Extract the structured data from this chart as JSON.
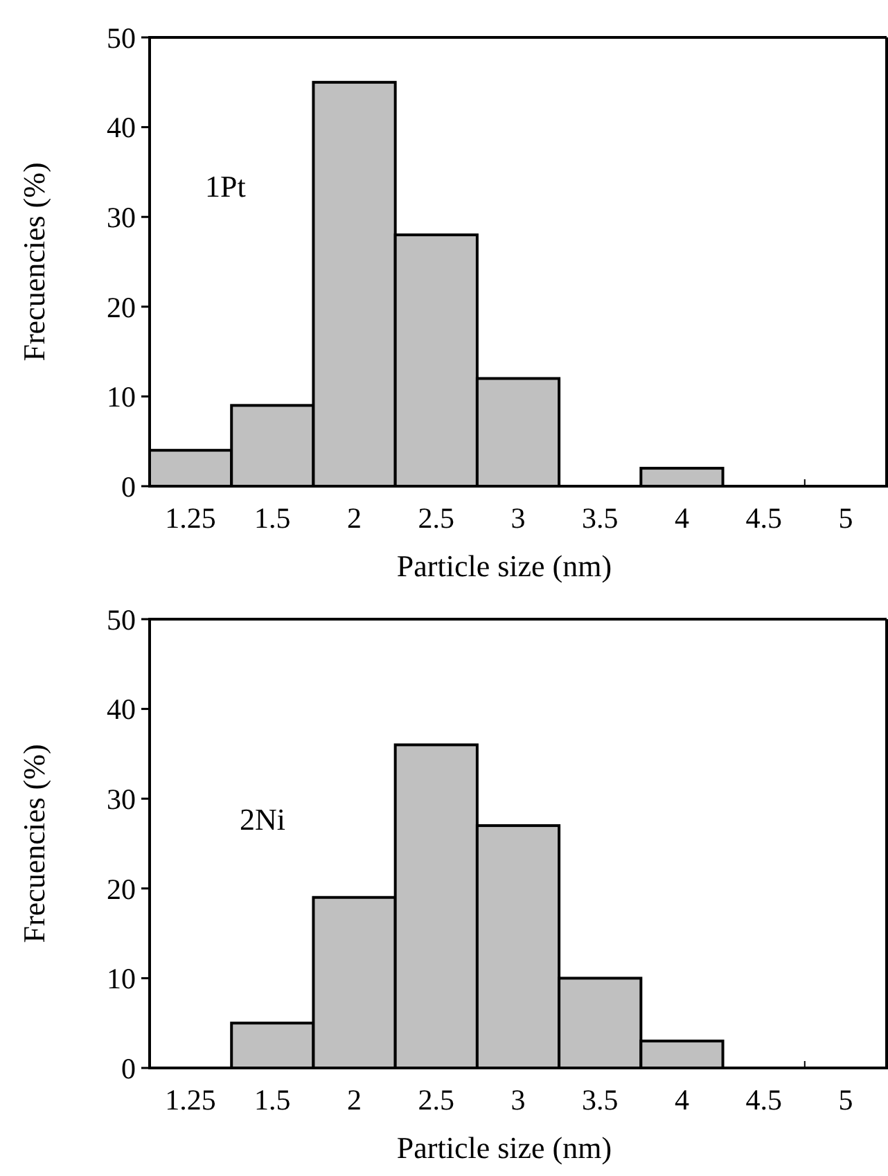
{
  "chart_data": [
    {
      "type": "bar",
      "categories": [
        "1.25",
        "1.5",
        "2",
        "2.5",
        "3",
        "3.5",
        "4",
        "4.5",
        "5"
      ],
      "values": [
        4,
        9,
        45,
        28,
        12,
        null,
        2,
        null,
        null
      ],
      "color": "#c0c0c0",
      "ylim": [
        0,
        50
      ],
      "yticks": [
        0,
        10,
        20,
        30,
        40,
        50
      ],
      "xlabel": "Particle size (nm)",
      "ylabel": "Frecuencies (%)",
      "annotations": [
        "1Pt"
      ],
      "grid": false
    },
    {
      "type": "bar",
      "categories": [
        "1.25",
        "1.5",
        "2",
        "2.5",
        "3",
        "3.5",
        "4",
        "4.5",
        "5"
      ],
      "values": [
        null,
        5,
        19,
        36,
        27,
        10,
        3,
        null,
        null
      ],
      "color": "#c0c0c0",
      "ylim": [
        0,
        50
      ],
      "yticks": [
        0,
        10,
        20,
        30,
        40,
        50
      ],
      "xlabel": "Particle size (nm)",
      "ylabel": "Frecuencies (%)",
      "annotations": [
        "2Ni"
      ],
      "grid": false
    }
  ]
}
